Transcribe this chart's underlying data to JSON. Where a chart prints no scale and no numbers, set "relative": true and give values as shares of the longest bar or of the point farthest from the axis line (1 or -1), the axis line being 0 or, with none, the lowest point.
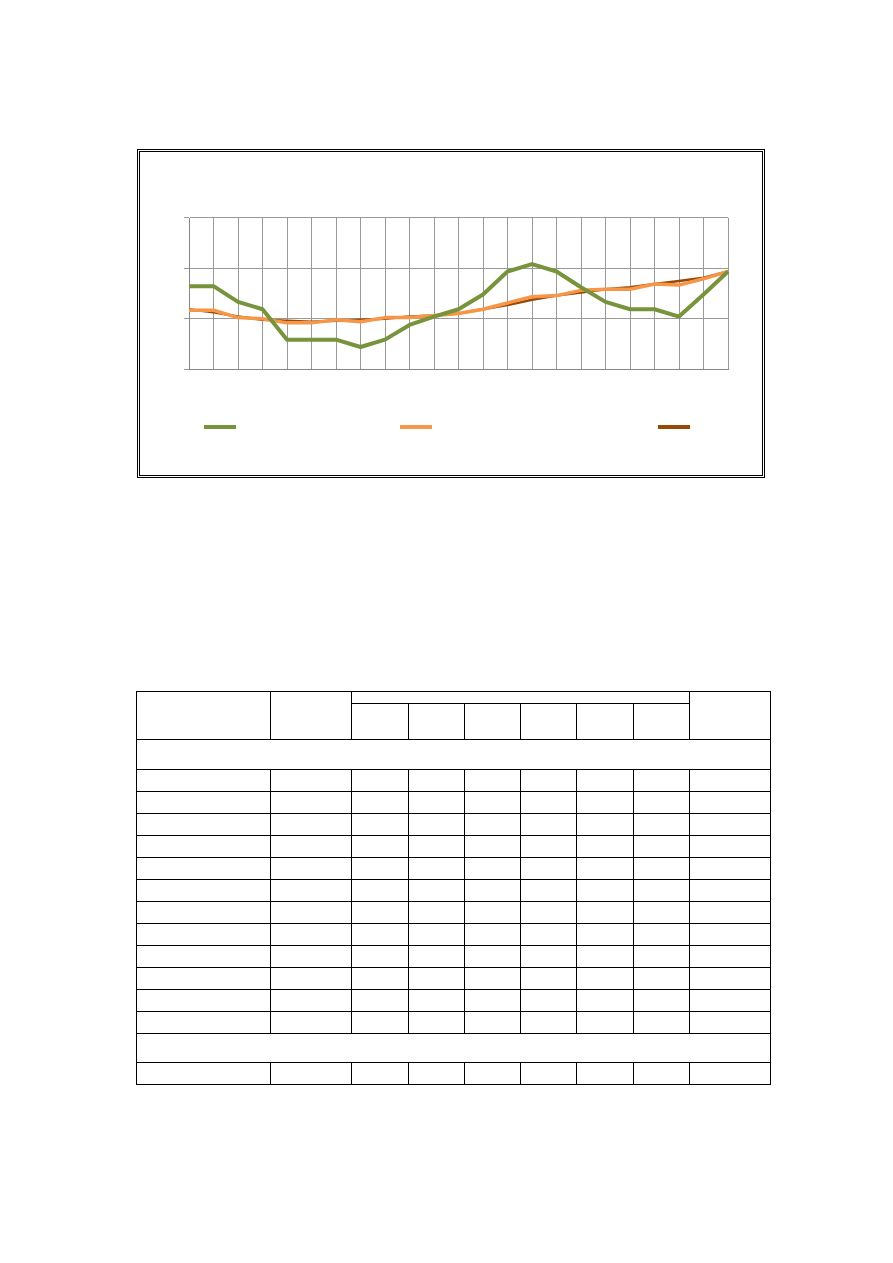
{
  "chart_data": {
    "type": "line",
    "relative": true,
    "grid": true,
    "marker": "none",
    "line_style": "solid",
    "categories": [
      null,
      null,
      null,
      null,
      null,
      null,
      null,
      null,
      null,
      null,
      null,
      null,
      null,
      null,
      null,
      null,
      null,
      null,
      null,
      null,
      null,
      null,
      null
    ],
    "series": [
      {
        "color": "#77933c",
        "values": [
          0.79,
          0.79,
          0.64,
          0.57,
          0.28,
          0.28,
          0.28,
          0.21,
          0.28,
          0.42,
          0.5,
          0.57,
          0.71,
          0.93,
          1,
          0.93,
          0.78,
          0.64,
          0.57,
          0.57,
          0.5,
          0.71,
          0.93
        ]
      },
      {
        "color": "#f79646",
        "values": [
          0.56,
          0.56,
          0.49,
          0.48,
          0.44,
          0.44,
          0.47,
          0.45,
          0.49,
          0.49,
          0.51,
          0.53,
          0.57,
          0.63,
          0.69,
          0.7,
          0.75,
          0.76,
          0.76,
          0.81,
          0.8,
          0.86,
          0.93
        ]
      },
      {
        "color": "#984807",
        "values": [
          0.57,
          0.54,
          0.5,
          0.47,
          0.46,
          0.45,
          0.46,
          0.47,
          0.48,
          0.5,
          0.51,
          0.53,
          0.57,
          0.61,
          0.66,
          0.7,
          0.73,
          0.76,
          0.78,
          0.81,
          0.84,
          0.87,
          0.93
        ]
      }
    ]
  }
}
